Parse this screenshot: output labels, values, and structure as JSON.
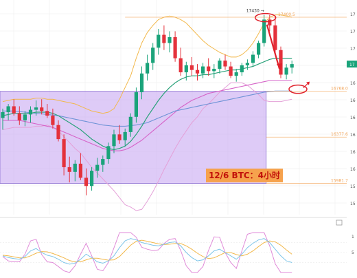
{
  "chart_data": {
    "type": "candlestick",
    "caption": "12/6 BTC：4小时",
    "colors": {
      "up": "#1aa37a",
      "down": "#e4313b",
      "box_fill": "#c8a8f2",
      "box_stroke": "#8a6fd0",
      "bb_upper": "#f2b84a",
      "bb_mid": "#2aa27a",
      "bb_lower": "#e4a0d8",
      "ma_long": "#6e93d6",
      "ma_mid": "#d663c8",
      "level": "#f2a55a",
      "annotation": "#e0202a",
      "stoch_k": "#e08ad8",
      "stoch_d": "#f2b84a",
      "stoch_j": "#7ec5e8"
    },
    "ylim": [
      15750,
      17500
    ],
    "candles": [
      [
        16540,
        16620,
        16440,
        16590
      ],
      [
        16590,
        16660,
        16520,
        16640
      ],
      [
        16640,
        16700,
        16560,
        16580
      ],
      [
        16580,
        16640,
        16480,
        16520
      ],
      [
        16520,
        16600,
        16470,
        16570
      ],
      [
        16570,
        16640,
        16500,
        16610
      ],
      [
        16610,
        16690,
        16560,
        16630
      ],
      [
        16630,
        16700,
        16570,
        16600
      ],
      [
        16600,
        16660,
        16540,
        16560
      ],
      [
        16560,
        16620,
        16450,
        16480
      ],
      [
        16480,
        16520,
        16340,
        16360
      ],
      [
        16360,
        16400,
        16050,
        16120
      ],
      [
        16120,
        16210,
        15990,
        16080
      ],
      [
        16080,
        16180,
        16000,
        16150
      ],
      [
        16150,
        16240,
        16010,
        16030
      ],
      [
        16030,
        16110,
        15880,
        15960
      ],
      [
        15960,
        16120,
        15920,
        16090
      ],
      [
        16090,
        16200,
        16030,
        16140
      ],
      [
        16140,
        16220,
        16080,
        16190
      ],
      [
        16190,
        16330,
        16150,
        16300
      ],
      [
        16300,
        16440,
        16240,
        16400
      ],
      [
        16400,
        16480,
        16320,
        16350
      ],
      [
        16350,
        16450,
        16300,
        16420
      ],
      [
        16420,
        16580,
        16380,
        16550
      ],
      [
        16550,
        16800,
        16500,
        16760
      ],
      [
        16760,
        16980,
        16700,
        16920
      ],
      [
        16920,
        17080,
        16860,
        17010
      ],
      [
        17010,
        17180,
        16950,
        17140
      ],
      [
        17140,
        17300,
        17080,
        17250
      ],
      [
        17250,
        17330,
        17120,
        17180
      ],
      [
        17180,
        17280,
        17100,
        17230
      ],
      [
        17230,
        17280,
        17020,
        17050
      ],
      [
        17050,
        17140,
        16900,
        16930
      ],
      [
        16930,
        17020,
        16860,
        16990
      ],
      [
        16990,
        17060,
        16900,
        16950
      ],
      [
        16950,
        17000,
        16860,
        16920
      ],
      [
        16920,
        17010,
        16880,
        16980
      ],
      [
        16980,
        17050,
        16900,
        16940
      ],
      [
        16940,
        17000,
        16880,
        16960
      ],
      [
        16960,
        17050,
        16920,
        17030
      ],
      [
        17030,
        17080,
        16950,
        16980
      ],
      [
        16980,
        17020,
        16880,
        16900
      ],
      [
        16900,
        16960,
        16850,
        16930
      ],
      [
        16930,
        17010,
        16900,
        16990
      ],
      [
        16990,
        17040,
        16950,
        17010
      ],
      [
        17010,
        17110,
        16980,
        17080
      ],
      [
        17080,
        17200,
        17050,
        17180
      ],
      [
        17180,
        17420,
        17150,
        17380
      ],
      [
        17380,
        17420,
        17280,
        17330
      ],
      [
        17330,
        17400,
        17080,
        17120
      ],
      [
        17120,
        17150,
        16880,
        16910
      ],
      [
        16910,
        17000,
        16870,
        16970
      ],
      [
        16970,
        17030,
        16920,
        17000
      ]
    ],
    "bb_upper": [
      16680,
      16690,
      16700,
      16700,
      16700,
      16700,
      16710,
      16710,
      16700,
      16700,
      16690,
      16680,
      16670,
      16660,
      16640,
      16620,
      16600,
      16590,
      16580,
      16590,
      16620,
      16700,
      16800,
      16900,
      17050,
      17180,
      17270,
      17330,
      17380,
      17400,
      17410,
      17400,
      17380,
      17350,
      17300,
      17250,
      17200,
      17160,
      17130,
      17100,
      17080,
      17060,
      17060,
      17080,
      17120,
      17180,
      17260,
      17350,
      17400,
      17420,
      17420,
      17410,
      17400
    ],
    "bb_mid": [
      16560,
      16570,
      16580,
      16580,
      16580,
      16580,
      16590,
      16590,
      16590,
      16580,
      16560,
      16530,
      16500,
      16470,
      16440,
      16400,
      16360,
      16330,
      16300,
      16280,
      16270,
      16280,
      16300,
      16340,
      16400,
      16470,
      16550,
      16620,
      16690,
      16750,
      16800,
      16840,
      16870,
      16890,
      16900,
      16900,
      16910,
      16910,
      16920,
      16930,
      16940,
      16950,
      16950,
      16960,
      16970,
      16980,
      17000,
      17020,
      17040,
      17050,
      17050,
      17050,
      17050
    ],
    "bb_lower": [
      16440,
      16450,
      16460,
      16460,
      16460,
      16460,
      16470,
      16470,
      16480,
      16460,
      16430,
      16380,
      16330,
      16280,
      16240,
      16180,
      16120,
      16070,
      16020,
      15970,
      15920,
      15860,
      15800,
      15780,
      15750,
      15760,
      15830,
      15910,
      16000,
      16100,
      16190,
      16280,
      16360,
      16430,
      16500,
      16550,
      16620,
      16660,
      16710,
      16760,
      16800,
      16840,
      16840,
      16840,
      16820,
      16780,
      16740,
      16690,
      16680,
      16680,
      16680,
      16690,
      16700
    ],
    "ma_long": [
      16600,
      16600,
      16600,
      16595,
      16590,
      16585,
      16580,
      16575,
      16570,
      16565,
      16560,
      16550,
      16540,
      16530,
      16520,
      16510,
      16500,
      16490,
      16480,
      16475,
      16470,
      16470,
      16470,
      16475,
      16480,
      16490,
      16500,
      16520,
      16540,
      16560,
      16580,
      16600,
      16610,
      16620,
      16630,
      16640,
      16650,
      16660,
      16670,
      16680,
      16690,
      16700,
      16710,
      16720,
      16730,
      16740,
      16750,
      16760,
      16765,
      16770,
      16770,
      16770,
      16770
    ],
    "ma_mid": [
      16520,
      16520,
      16520,
      16520,
      16510,
      16500,
      16490,
      16480,
      16470,
      16460,
      16440,
      16420,
      16400,
      16380,
      16360,
      16340,
      16320,
      16300,
      16280,
      16270,
      16260,
      16260,
      16270,
      16290,
      16320,
      16350,
      16390,
      16430,
      16470,
      16510,
      16550,
      16590,
      16630,
      16660,
      16690,
      16710,
      16730,
      16750,
      16760,
      16770,
      16780,
      16790,
      16800,
      16810,
      16820,
      16830,
      16840,
      16850,
      16860,
      16860,
      16860,
      16860,
      16860
    ],
    "levels": [
      {
        "label": "17400.5",
        "value": 17400
      },
      {
        "label": "16768.0",
        "value": 16768
      },
      {
        "label": "16377.6",
        "value": 16377
      },
      {
        "label": "15981.7",
        "value": 15981
      }
    ],
    "box": {
      "from_index": 0,
      "to_index": 47,
      "top": 16768,
      "bottom": 15981
    },
    "peak_label": "17430 →",
    "price_tag": "17",
    "right_axis_ticks": [
      "17",
      "17",
      "17",
      "16",
      "16",
      "16",
      "16",
      "16",
      "16",
      "16",
      "15",
      "15"
    ],
    "stoch_ticks": [
      "1",
      "5"
    ],
    "stoch_ylim": [
      -10,
      110
    ],
    "stoch_k": [
      40,
      35,
      32,
      30,
      38,
      55,
      62,
      50,
      42,
      38,
      30,
      20,
      15,
      18,
      30,
      45,
      35,
      22,
      18,
      25,
      40,
      65,
      85,
      92,
      88,
      80,
      76,
      72,
      70,
      75,
      80,
      82,
      70,
      50,
      35,
      25,
      28,
      40,
      55,
      60,
      50,
      40,
      30,
      45,
      65,
      78,
      88,
      92,
      80,
      60,
      40,
      25,
      20
    ],
    "stoch_d": [
      42,
      40,
      37,
      34,
      34,
      40,
      48,
      53,
      52,
      47,
      41,
      34,
      26,
      22,
      22,
      28,
      33,
      33,
      30,
      27,
      28,
      38,
      55,
      72,
      84,
      87,
      84,
      80,
      76,
      74,
      75,
      77,
      77,
      70,
      60,
      48,
      38,
      32,
      34,
      42,
      50,
      50,
      44,
      40,
      45,
      55,
      68,
      80,
      85,
      82,
      72,
      58,
      45
    ],
    "stoch_j": [
      38,
      25,
      22,
      22,
      45,
      85,
      90,
      44,
      22,
      20,
      8,
      -5,
      -10,
      10,
      45,
      78,
      40,
      0,
      -5,
      20,
      64,
      120,
      140,
      132,
      96,
      66,
      60,
      56,
      58,
      77,
      90,
      92,
      56,
      10,
      -15,
      -20,
      8,
      56,
      97,
      96,
      50,
      20,
      2,
      55,
      105,
      124,
      128,
      116,
      70,
      16,
      -24,
      -41,
      -30
    ]
  }
}
